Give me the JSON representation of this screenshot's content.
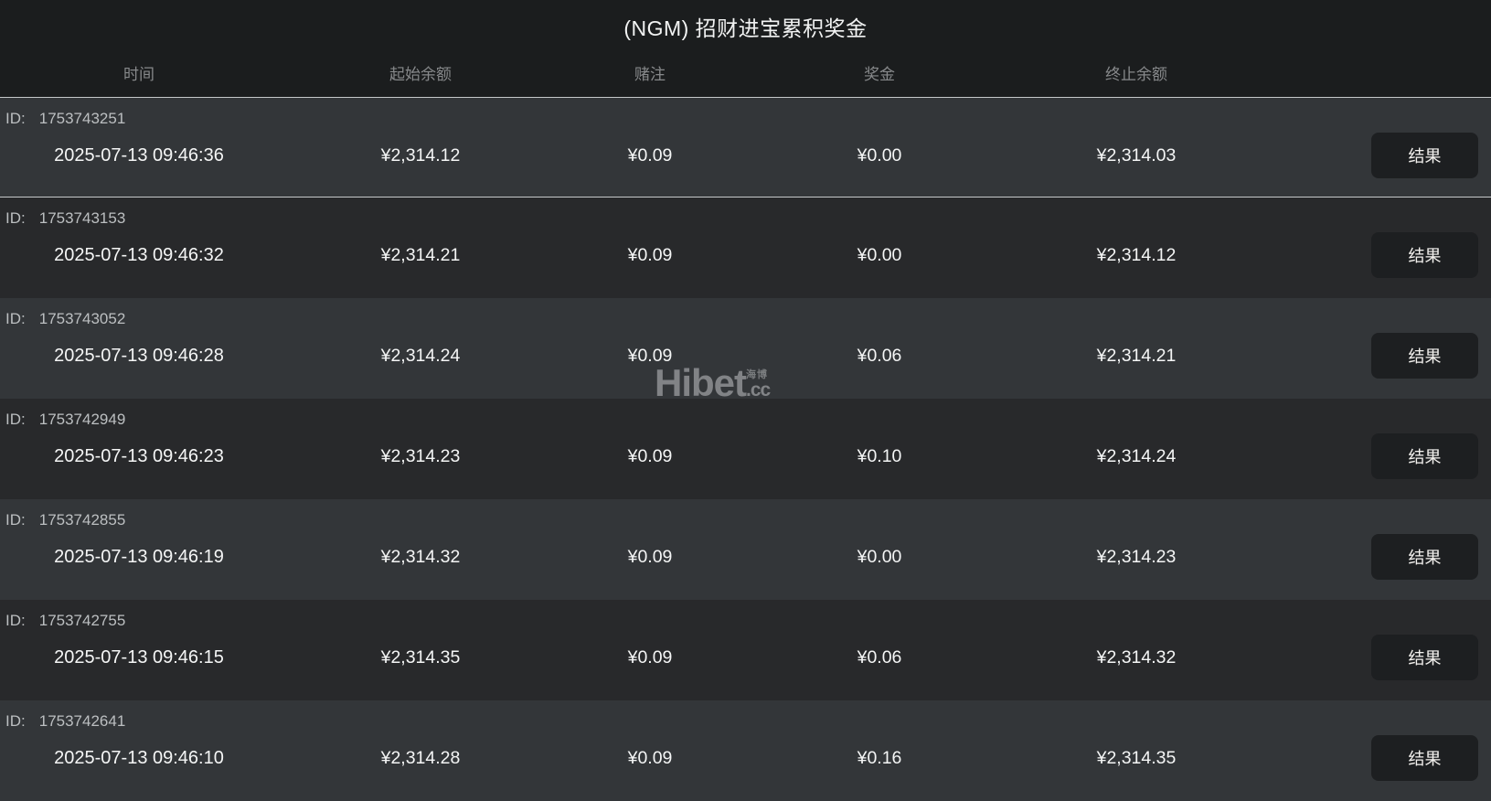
{
  "title": "(NGM) 招财进宝累积奖金",
  "columns": {
    "time": "时间",
    "start_balance": "起始余额",
    "bet": "赌注",
    "prize": "奖金",
    "end_balance": "终止余额"
  },
  "labels": {
    "id": "ID:",
    "result": "结果"
  },
  "watermark": {
    "brand": "Hibet",
    "cn": "海博",
    "suffix": ".cc"
  },
  "colors": {
    "page_bg": "#1b1d1e",
    "row_light": "#333639",
    "row_dark": "#28292b",
    "separator": "#c6c8ca",
    "button_bg": "#1d1f21",
    "header_text": "#87898b",
    "id_text": "#bcbfc1",
    "value_text": "#f5f6f6",
    "watermark": "#95979a"
  },
  "rows": [
    {
      "id": "1753743251",
      "time": "2025-07-13 09:46:36",
      "start": "¥2,314.12",
      "bet": "¥0.09",
      "prize": "¥0.00",
      "end": "¥2,314.03"
    },
    {
      "id": "1753743153",
      "time": "2025-07-13 09:46:32",
      "start": "¥2,314.21",
      "bet": "¥0.09",
      "prize": "¥0.00",
      "end": "¥2,314.12"
    },
    {
      "id": "1753743052",
      "time": "2025-07-13 09:46:28",
      "start": "¥2,314.24",
      "bet": "¥0.09",
      "prize": "¥0.06",
      "end": "¥2,314.21"
    },
    {
      "id": "1753742949",
      "time": "2025-07-13 09:46:23",
      "start": "¥2,314.23",
      "bet": "¥0.09",
      "prize": "¥0.10",
      "end": "¥2,314.24"
    },
    {
      "id": "1753742855",
      "time": "2025-07-13 09:46:19",
      "start": "¥2,314.32",
      "bet": "¥0.09",
      "prize": "¥0.00",
      "end": "¥2,314.23"
    },
    {
      "id": "1753742755",
      "time": "2025-07-13 09:46:15",
      "start": "¥2,314.35",
      "bet": "¥0.09",
      "prize": "¥0.06",
      "end": "¥2,314.32"
    },
    {
      "id": "1753742641",
      "time": "2025-07-13 09:46:10",
      "start": "¥2,314.28",
      "bet": "¥0.09",
      "prize": "¥0.16",
      "end": "¥2,314.35"
    }
  ]
}
